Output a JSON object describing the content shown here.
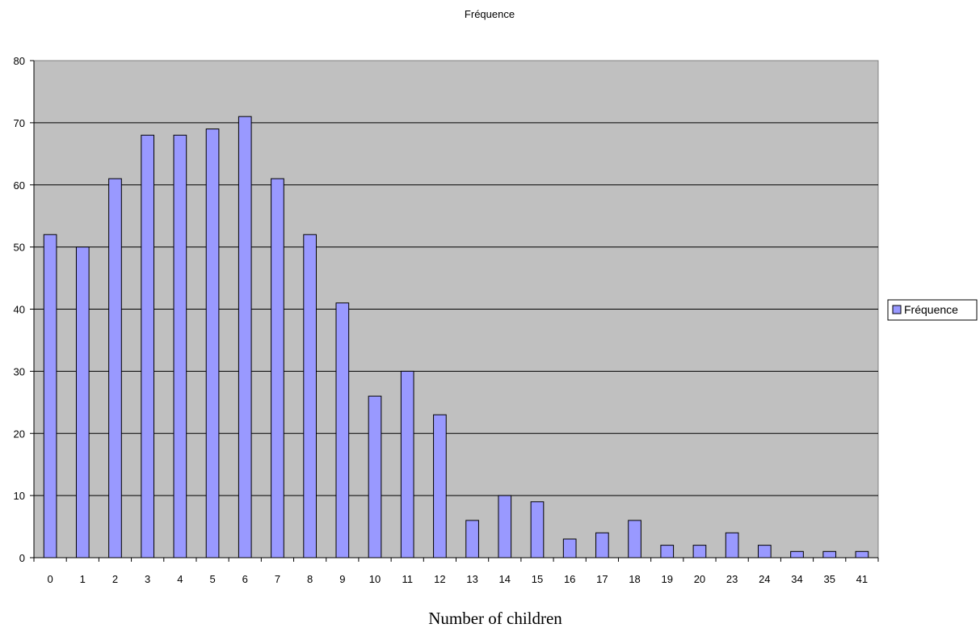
{
  "chart_data": {
    "type": "bar",
    "title": "Fréquence",
    "xlabel": "Number of children",
    "ylabel": "",
    "categories": [
      "0",
      "1",
      "2",
      "3",
      "4",
      "5",
      "6",
      "7",
      "8",
      "9",
      "10",
      "11",
      "12",
      "13",
      "14",
      "15",
      "16",
      "17",
      "18",
      "19",
      "20",
      "23",
      "24",
      "34",
      "35",
      "41"
    ],
    "series": [
      {
        "name": "Fréquence",
        "values": [
          52,
          50,
          61,
          68,
          68,
          69,
          71,
          61,
          52,
          41,
          26,
          30,
          23,
          6,
          10,
          9,
          3,
          4,
          6,
          2,
          2,
          4,
          2,
          1,
          1,
          1
        ]
      }
    ],
    "ylim": [
      0,
      80
    ],
    "yticks": [
      0,
      10,
      20,
      30,
      40,
      50,
      60,
      70,
      80
    ],
    "grid": true,
    "legend_position": "right"
  },
  "colors": {
    "bar_fill": "#9999ff",
    "bar_stroke": "#000000",
    "plot_background": "#c0c0c0",
    "gridline": "#000000"
  }
}
